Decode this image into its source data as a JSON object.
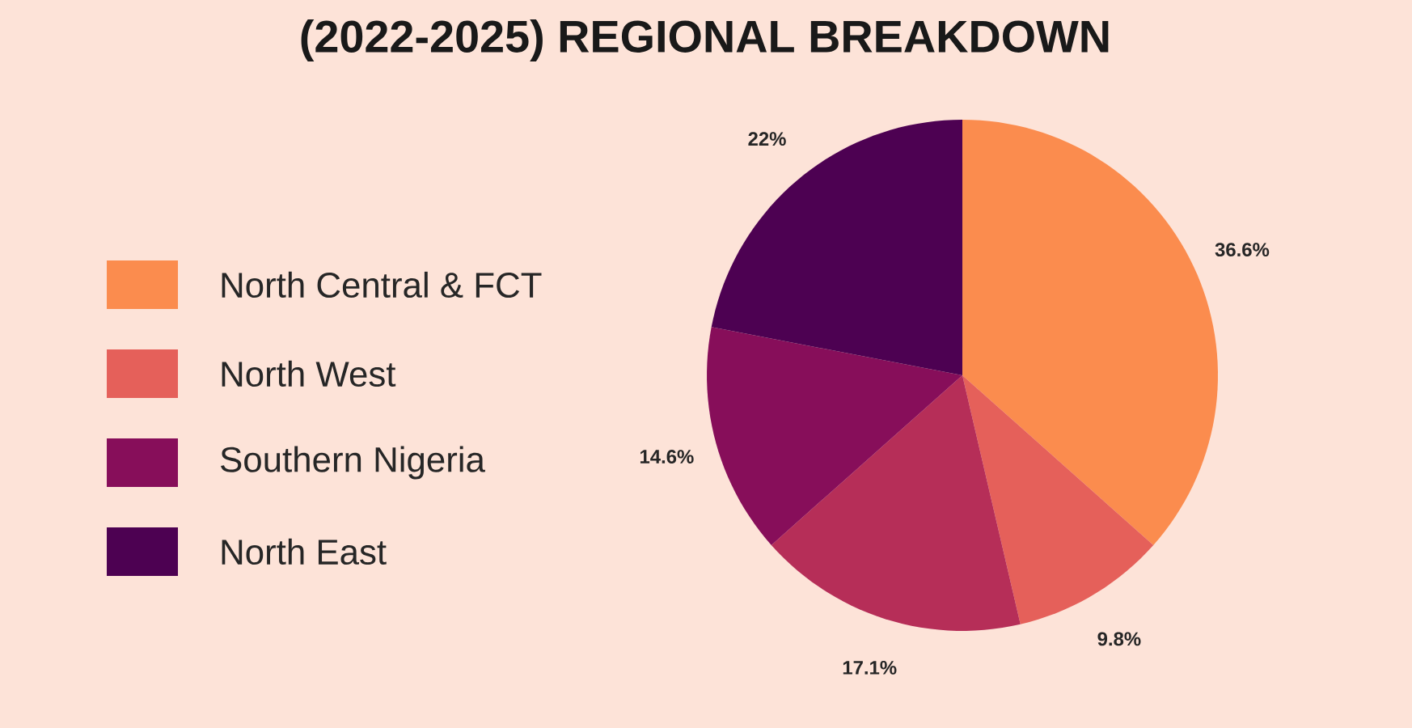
{
  "chart_data": {
    "type": "pie",
    "title": "(2022-2025) REGIONAL BREAKDOWN",
    "categories": [
      "North Central & FCT",
      "North West",
      null,
      "Southern Nigeria",
      "North East"
    ],
    "values": [
      36.6,
      9.8,
      17.1,
      14.6,
      22
    ],
    "colors": [
      "#fb8c4e",
      "#e5605a",
      "#b62e58",
      "#870e5a",
      "#4d0152"
    ],
    "value_labels": [
      "36.6%",
      "9.8%",
      "17.1%",
      "14.6%",
      "22%"
    ],
    "legend": "left"
  }
}
